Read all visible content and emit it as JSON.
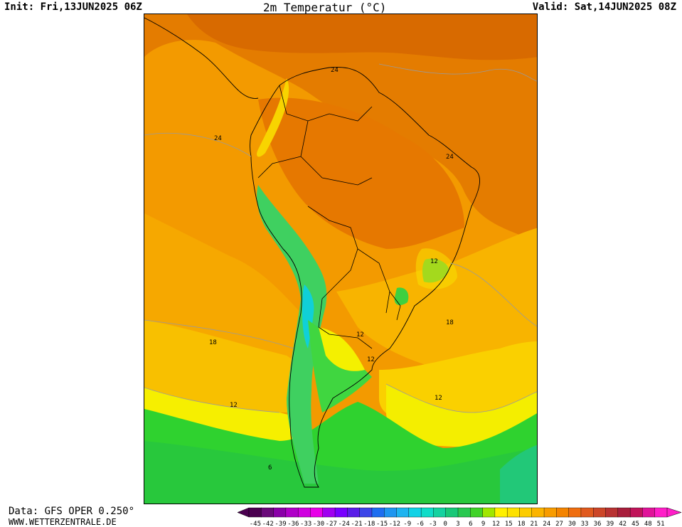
{
  "header": {
    "init": "Init: Fri,13JUN2025 06Z",
    "title": "2m Temperatur (°C)",
    "valid": "Valid: Sat,14JUN2025 08Z"
  },
  "footer": {
    "source": "Data: GFS OPER 0.250°",
    "site": "WWW.WETTERZENTRALE.DE"
  },
  "colors": {
    "land_hot": "#e07a00",
    "sea_warm": "#f39a00",
    "band_21": "#f5a800",
    "band_18": "#f8be00",
    "band_15": "#fad800",
    "band_12": "#f4ef00",
    "band_9": "#7fd900",
    "band_6": "#3ad23a",
    "band_3": "#18c46a",
    "band_0": "#20c8a0",
    "band_-3": "#1ad8d8",
    "andes_cold": "#2fc07a",
    "border": "#000000",
    "contour": "#9a9a9a"
  },
  "isotherm_labels": [
    "24",
    "24",
    "24",
    "18",
    "18",
    "12",
    "12",
    "12",
    "12",
    "12",
    "6"
  ],
  "legend": {
    "ticks": [
      "-45",
      "-42",
      "-39",
      "-36",
      "-33",
      "-30",
      "-27",
      "-24",
      "-21",
      "-18",
      "-15",
      "-12",
      "-9",
      "-6",
      "-3",
      "0",
      "3",
      "6",
      "9",
      "12",
      "15",
      "18",
      "21",
      "24",
      "27",
      "30",
      "33",
      "36",
      "39",
      "42",
      "45",
      "48",
      "51"
    ],
    "colors": [
      "#4b0050",
      "#6a0a7a",
      "#8a00a8",
      "#b000c8",
      "#d000e0",
      "#e800e8",
      "#a000f0",
      "#7800ff",
      "#5a1ee8",
      "#3c46e8",
      "#1e6ef0",
      "#1e96f0",
      "#1eb4f0",
      "#12d2e6",
      "#10dcc8",
      "#14d2a0",
      "#18c878",
      "#28c850",
      "#40d228",
      "#a0e600",
      "#fff000",
      "#fde100",
      "#fccc00",
      "#fbb400",
      "#f89c00",
      "#f48400",
      "#ef6e10",
      "#e05a1e",
      "#cc4628",
      "#b83232",
      "#a81e3c",
      "#c0145a",
      "#e0149a",
      "#ff1ec8"
    ]
  }
}
